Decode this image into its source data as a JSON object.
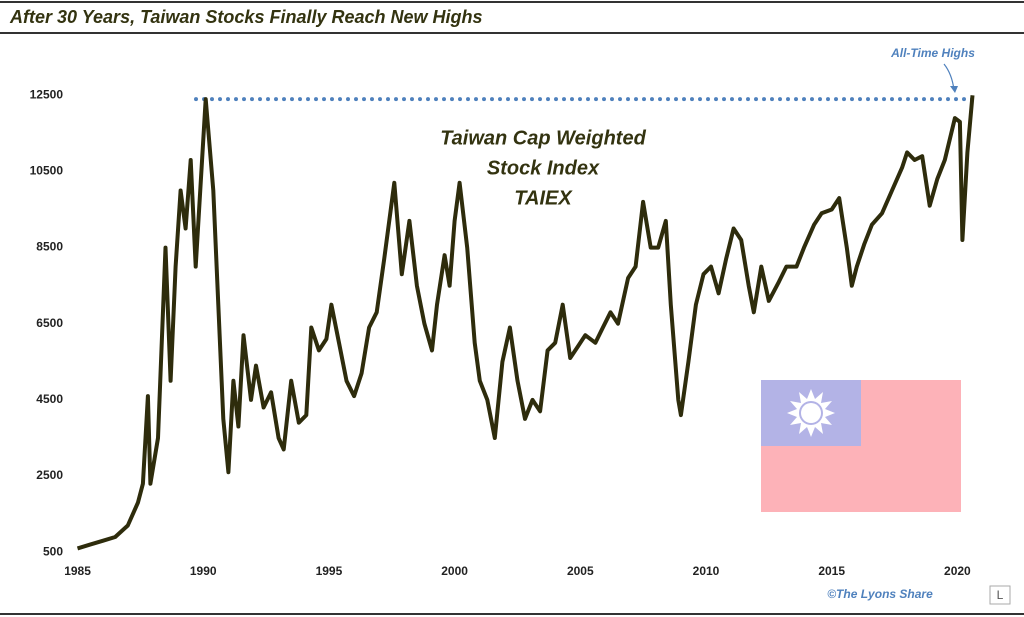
{
  "chart_data": {
    "type": "line",
    "title": "After 30 Years, Taiwan Stocks Finally Reach New Highs",
    "annotation_lines": [
      "Taiwan Cap Weighted",
      "Stock Index",
      "TAIEX"
    ],
    "highs_label": "All-Time Highs",
    "credit": "©The Lyons Share",
    "credit_logo": "L",
    "color": "#2e2c0c",
    "reference_line": 12400,
    "reference_color": "#4f81bd",
    "xlim": [
      1984.7,
      2020.9
    ],
    "xticks": [
      1985,
      1990,
      1995,
      2000,
      2005,
      2010,
      2015,
      2020
    ],
    "ylim": [
      400,
      13400
    ],
    "yticks": [
      500,
      2500,
      4500,
      6500,
      8500,
      10500,
      12500
    ],
    "x": [
      1985.0,
      1985.5,
      1986.0,
      1986.5,
      1987.0,
      1987.4,
      1987.6,
      1987.8,
      1987.9,
      1988.2,
      1988.5,
      1988.7,
      1988.9,
      1989.1,
      1989.3,
      1989.5,
      1989.7,
      1990.1,
      1990.4,
      1990.6,
      1990.8,
      1991.0,
      1991.2,
      1991.4,
      1991.6,
      1991.9,
      1992.1,
      1992.4,
      1992.7,
      1993.0,
      1993.2,
      1993.5,
      1993.8,
      1994.1,
      1994.3,
      1994.6,
      1994.9,
      1995.1,
      1995.4,
      1995.7,
      1996.0,
      1996.3,
      1996.6,
      1996.9,
      1997.2,
      1997.6,
      1997.9,
      1998.2,
      1998.5,
      1998.8,
      1999.1,
      1999.3,
      1999.6,
      1999.8,
      2000.0,
      2000.2,
      2000.5,
      2000.8,
      2001.0,
      2001.3,
      2001.6,
      2001.9,
      2002.2,
      2002.5,
      2002.8,
      2003.1,
      2003.4,
      2003.7,
      2004.0,
      2004.3,
      2004.6,
      2004.9,
      2005.2,
      2005.6,
      2005.9,
      2006.2,
      2006.5,
      2006.9,
      2007.2,
      2007.5,
      2007.8,
      2008.1,
      2008.4,
      2008.6,
      2008.9,
      2009.0,
      2009.3,
      2009.6,
      2009.9,
      2010.2,
      2010.5,
      2010.8,
      2011.1,
      2011.4,
      2011.7,
      2011.9,
      2012.2,
      2012.5,
      2012.9,
      2013.2,
      2013.6,
      2013.9,
      2014.3,
      2014.6,
      2015.0,
      2015.3,
      2015.6,
      2015.8,
      2016.0,
      2016.3,
      2016.6,
      2017.0,
      2017.4,
      2017.8,
      2018.0,
      2018.3,
      2018.6,
      2018.9,
      2019.2,
      2019.5,
      2019.9,
      2020.1,
      2020.2,
      2020.4,
      2020.6
    ],
    "values": [
      600,
      700,
      800,
      900,
      1200,
      1800,
      2300,
      4600,
      2300,
      3500,
      8500,
      5000,
      8000,
      10000,
      9000,
      10800,
      8000,
      12400,
      10000,
      7000,
      4000,
      2600,
      5000,
      3800,
      6200,
      4500,
      5400,
      4300,
      4700,
      3500,
      3200,
      5000,
      3900,
      4100,
      6400,
      5800,
      6100,
      7000,
      6000,
      5000,
      4600,
      5200,
      6400,
      6800,
      8200,
      10200,
      7800,
      9200,
      7500,
      6500,
      5800,
      7000,
      8300,
      7500,
      9200,
      10200,
      8500,
      6000,
      5000,
      4500,
      3500,
      5500,
      6400,
      5000,
      4000,
      4500,
      4200,
      5800,
      6000,
      7000,
      5600,
      5900,
      6200,
      6000,
      6400,
      6800,
      6500,
      7700,
      8000,
      9700,
      8500,
      8500,
      9200,
      7000,
      4500,
      4100,
      5500,
      7000,
      7800,
      8000,
      7300,
      8200,
      9000,
      8700,
      7500,
      6800,
      8000,
      7100,
      7600,
      8000,
      8000,
      8500,
      9100,
      9400,
      9500,
      9800,
      8500,
      7500,
      8000,
      8600,
      9100,
      9400,
      10000,
      10600,
      11000,
      10800,
      10900,
      9600,
      10300,
      10800,
      11900,
      11800,
      8700,
      11000,
      12500
    ]
  }
}
